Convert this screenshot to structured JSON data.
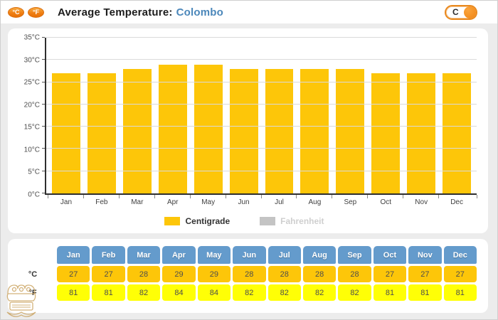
{
  "header": {
    "badge_c": "°C",
    "badge_f": "°F",
    "title": "Average Temperature:",
    "city": "Colombo",
    "toggle_label": "C"
  },
  "chart_data": {
    "type": "bar",
    "title": "Average Temperature: Colombo",
    "categories": [
      "Jan",
      "Feb",
      "Mar",
      "Apr",
      "May",
      "Jun",
      "Jul",
      "Aug",
      "Sep",
      "Oct",
      "Nov",
      "Dec"
    ],
    "series": [
      {
        "name": "Centigrade",
        "values": [
          27,
          27,
          28,
          29,
          29,
          28,
          28,
          28,
          28,
          27,
          27,
          27
        ],
        "color": "#FDC609",
        "active": true
      },
      {
        "name": "Fahrenheit",
        "values": [
          81,
          81,
          82,
          84,
          84,
          82,
          82,
          82,
          82,
          81,
          81,
          81
        ],
        "color": "#C4C4C4",
        "active": false
      }
    ],
    "ylim": [
      0,
      35
    ],
    "ytick_step": 5,
    "ytick_suffix": "°C",
    "grid": true,
    "legend_position": "bottom"
  },
  "table": {
    "months": [
      "Jan",
      "Feb",
      "Mar",
      "Apr",
      "May",
      "Jun",
      "Jul",
      "Aug",
      "Sep",
      "Oct",
      "Nov",
      "Dec"
    ],
    "rows": [
      {
        "label": "°C",
        "values": [
          27,
          27,
          28,
          29,
          29,
          28,
          28,
          28,
          28,
          27,
          27,
          27
        ]
      },
      {
        "label": "°F",
        "values": [
          81,
          81,
          82,
          84,
          84,
          82,
          82,
          82,
          82,
          81,
          81,
          81
        ]
      }
    ]
  },
  "colors": {
    "bar": "#FDC609",
    "inactive_swatch": "#C4C4C4",
    "table_header": "#649BCC",
    "row_c": "#FDC609",
    "row_f": "#FFFF06",
    "accent_orange": "#F08514",
    "city_blue": "#4B87BA",
    "backdrop": "#ECECEC"
  }
}
